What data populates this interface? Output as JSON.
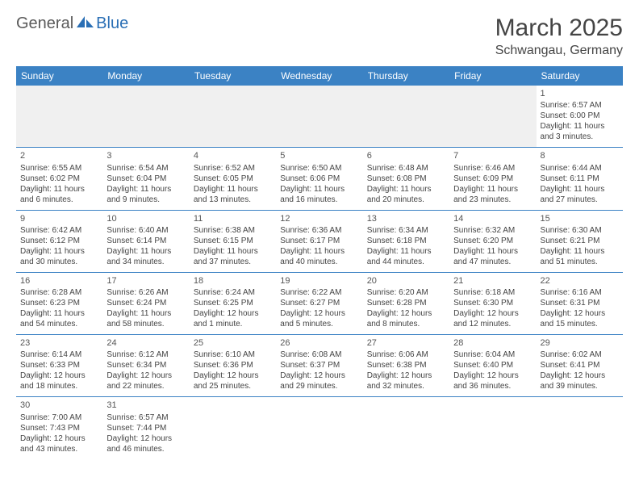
{
  "logo": {
    "word1": "General",
    "word2": "Blue"
  },
  "title": "March 2025",
  "location": "Schwangau, Germany",
  "colors": {
    "header_bg": "#3b82c4",
    "header_text": "#ffffff",
    "border": "#3b82c4",
    "empty_bg": "#f0f0f0",
    "logo_gray": "#5a5a5a",
    "logo_blue": "#2a6fb5",
    "text": "#444444"
  },
  "weekdays": [
    "Sunday",
    "Monday",
    "Tuesday",
    "Wednesday",
    "Thursday",
    "Friday",
    "Saturday"
  ],
  "weeks": [
    [
      null,
      null,
      null,
      null,
      null,
      null,
      {
        "d": "1",
        "sr": "Sunrise: 6:57 AM",
        "ss": "Sunset: 6:00 PM",
        "dl1": "Daylight: 11 hours",
        "dl2": "and 3 minutes."
      }
    ],
    [
      {
        "d": "2",
        "sr": "Sunrise: 6:55 AM",
        "ss": "Sunset: 6:02 PM",
        "dl1": "Daylight: 11 hours",
        "dl2": "and 6 minutes."
      },
      {
        "d": "3",
        "sr": "Sunrise: 6:54 AM",
        "ss": "Sunset: 6:04 PM",
        "dl1": "Daylight: 11 hours",
        "dl2": "and 9 minutes."
      },
      {
        "d": "4",
        "sr": "Sunrise: 6:52 AM",
        "ss": "Sunset: 6:05 PM",
        "dl1": "Daylight: 11 hours",
        "dl2": "and 13 minutes."
      },
      {
        "d": "5",
        "sr": "Sunrise: 6:50 AM",
        "ss": "Sunset: 6:06 PM",
        "dl1": "Daylight: 11 hours",
        "dl2": "and 16 minutes."
      },
      {
        "d": "6",
        "sr": "Sunrise: 6:48 AM",
        "ss": "Sunset: 6:08 PM",
        "dl1": "Daylight: 11 hours",
        "dl2": "and 20 minutes."
      },
      {
        "d": "7",
        "sr": "Sunrise: 6:46 AM",
        "ss": "Sunset: 6:09 PM",
        "dl1": "Daylight: 11 hours",
        "dl2": "and 23 minutes."
      },
      {
        "d": "8",
        "sr": "Sunrise: 6:44 AM",
        "ss": "Sunset: 6:11 PM",
        "dl1": "Daylight: 11 hours",
        "dl2": "and 27 minutes."
      }
    ],
    [
      {
        "d": "9",
        "sr": "Sunrise: 6:42 AM",
        "ss": "Sunset: 6:12 PM",
        "dl1": "Daylight: 11 hours",
        "dl2": "and 30 minutes."
      },
      {
        "d": "10",
        "sr": "Sunrise: 6:40 AM",
        "ss": "Sunset: 6:14 PM",
        "dl1": "Daylight: 11 hours",
        "dl2": "and 34 minutes."
      },
      {
        "d": "11",
        "sr": "Sunrise: 6:38 AM",
        "ss": "Sunset: 6:15 PM",
        "dl1": "Daylight: 11 hours",
        "dl2": "and 37 minutes."
      },
      {
        "d": "12",
        "sr": "Sunrise: 6:36 AM",
        "ss": "Sunset: 6:17 PM",
        "dl1": "Daylight: 11 hours",
        "dl2": "and 40 minutes."
      },
      {
        "d": "13",
        "sr": "Sunrise: 6:34 AM",
        "ss": "Sunset: 6:18 PM",
        "dl1": "Daylight: 11 hours",
        "dl2": "and 44 minutes."
      },
      {
        "d": "14",
        "sr": "Sunrise: 6:32 AM",
        "ss": "Sunset: 6:20 PM",
        "dl1": "Daylight: 11 hours",
        "dl2": "and 47 minutes."
      },
      {
        "d": "15",
        "sr": "Sunrise: 6:30 AM",
        "ss": "Sunset: 6:21 PM",
        "dl1": "Daylight: 11 hours",
        "dl2": "and 51 minutes."
      }
    ],
    [
      {
        "d": "16",
        "sr": "Sunrise: 6:28 AM",
        "ss": "Sunset: 6:23 PM",
        "dl1": "Daylight: 11 hours",
        "dl2": "and 54 minutes."
      },
      {
        "d": "17",
        "sr": "Sunrise: 6:26 AM",
        "ss": "Sunset: 6:24 PM",
        "dl1": "Daylight: 11 hours",
        "dl2": "and 58 minutes."
      },
      {
        "d": "18",
        "sr": "Sunrise: 6:24 AM",
        "ss": "Sunset: 6:25 PM",
        "dl1": "Daylight: 12 hours",
        "dl2": "and 1 minute."
      },
      {
        "d": "19",
        "sr": "Sunrise: 6:22 AM",
        "ss": "Sunset: 6:27 PM",
        "dl1": "Daylight: 12 hours",
        "dl2": "and 5 minutes."
      },
      {
        "d": "20",
        "sr": "Sunrise: 6:20 AM",
        "ss": "Sunset: 6:28 PM",
        "dl1": "Daylight: 12 hours",
        "dl2": "and 8 minutes."
      },
      {
        "d": "21",
        "sr": "Sunrise: 6:18 AM",
        "ss": "Sunset: 6:30 PM",
        "dl1": "Daylight: 12 hours",
        "dl2": "and 12 minutes."
      },
      {
        "d": "22",
        "sr": "Sunrise: 6:16 AM",
        "ss": "Sunset: 6:31 PM",
        "dl1": "Daylight: 12 hours",
        "dl2": "and 15 minutes."
      }
    ],
    [
      {
        "d": "23",
        "sr": "Sunrise: 6:14 AM",
        "ss": "Sunset: 6:33 PM",
        "dl1": "Daylight: 12 hours",
        "dl2": "and 18 minutes."
      },
      {
        "d": "24",
        "sr": "Sunrise: 6:12 AM",
        "ss": "Sunset: 6:34 PM",
        "dl1": "Daylight: 12 hours",
        "dl2": "and 22 minutes."
      },
      {
        "d": "25",
        "sr": "Sunrise: 6:10 AM",
        "ss": "Sunset: 6:36 PM",
        "dl1": "Daylight: 12 hours",
        "dl2": "and 25 minutes."
      },
      {
        "d": "26",
        "sr": "Sunrise: 6:08 AM",
        "ss": "Sunset: 6:37 PM",
        "dl1": "Daylight: 12 hours",
        "dl2": "and 29 minutes."
      },
      {
        "d": "27",
        "sr": "Sunrise: 6:06 AM",
        "ss": "Sunset: 6:38 PM",
        "dl1": "Daylight: 12 hours",
        "dl2": "and 32 minutes."
      },
      {
        "d": "28",
        "sr": "Sunrise: 6:04 AM",
        "ss": "Sunset: 6:40 PM",
        "dl1": "Daylight: 12 hours",
        "dl2": "and 36 minutes."
      },
      {
        "d": "29",
        "sr": "Sunrise: 6:02 AM",
        "ss": "Sunset: 6:41 PM",
        "dl1": "Daylight: 12 hours",
        "dl2": "and 39 minutes."
      }
    ],
    [
      {
        "d": "30",
        "sr": "Sunrise: 7:00 AM",
        "ss": "Sunset: 7:43 PM",
        "dl1": "Daylight: 12 hours",
        "dl2": "and 43 minutes."
      },
      {
        "d": "31",
        "sr": "Sunrise: 6:57 AM",
        "ss": "Sunset: 7:44 PM",
        "dl1": "Daylight: 12 hours",
        "dl2": "and 46 minutes."
      },
      null,
      null,
      null,
      null,
      null
    ]
  ]
}
